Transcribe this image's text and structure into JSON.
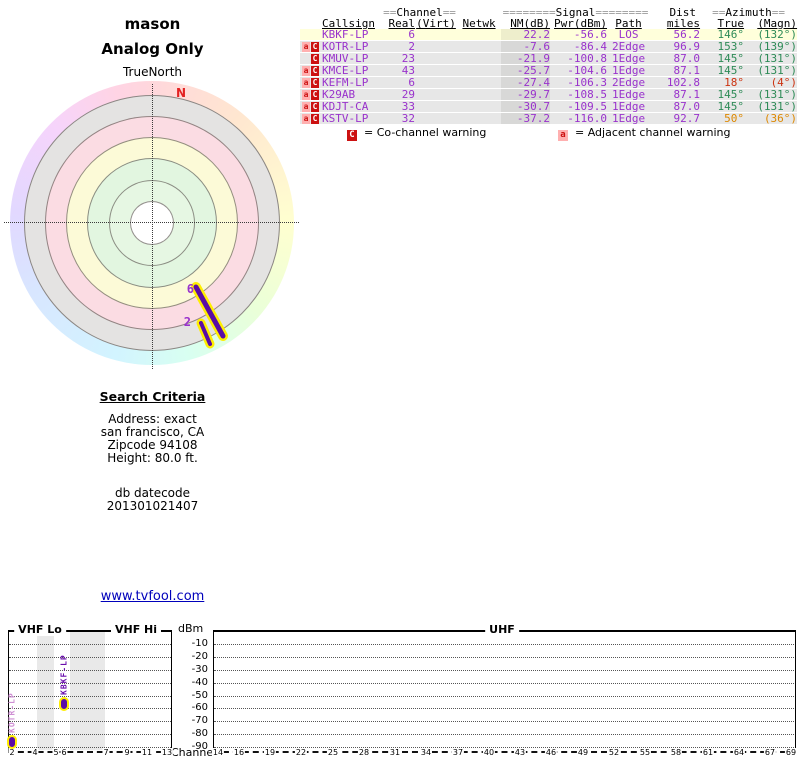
{
  "title": "mason",
  "subtitle": "Analog Only",
  "radar": {
    "orientation_label": "TrueNorth",
    "north_label": "N",
    "spokes": [
      {
        "label": "6",
        "callsign": "KBKF-LP",
        "azimuth_true_deg": 146
      },
      {
        "label": "2",
        "callsign": "KOTR-LP",
        "azimuth_true_deg": 153
      }
    ]
  },
  "table": {
    "group_headers": [
      "==Channel==",
      "========Signal========",
      "Dist",
      "==Azimuth=="
    ],
    "columns": [
      "Callsign",
      "Real",
      "(Virt)",
      "Netwk",
      "NM(dB)",
      "Pwr(dBm)",
      "Path",
      "miles",
      "True",
      "(Magn)"
    ],
    "rows": [
      {
        "warnings": [],
        "callsign": "KBKF-LP",
        "real": "6",
        "virt": "",
        "netwk": "",
        "nm": "22.2",
        "pwr": "-56.6",
        "path": "LOS",
        "miles": "56.2",
        "true": "146°",
        "magn": "(132°)",
        "az": "green",
        "highlight": true
      },
      {
        "warnings": [
          "a",
          "C"
        ],
        "callsign": "KOTR-LP",
        "real": "2",
        "virt": "",
        "netwk": "",
        "nm": "-7.6",
        "pwr": "-86.4",
        "path": "2Edge",
        "miles": "96.9",
        "true": "153°",
        "magn": "(139°)",
        "az": "green",
        "highlight": false
      },
      {
        "warnings": [
          "C"
        ],
        "callsign": "KMUV-LP",
        "real": "23",
        "virt": "",
        "netwk": "",
        "nm": "-21.9",
        "pwr": "-100.8",
        "path": "1Edge",
        "miles": "87.0",
        "true": "145°",
        "magn": "(131°)",
        "az": "green",
        "highlight": false
      },
      {
        "warnings": [
          "a",
          "C"
        ],
        "callsign": "KMCE-LP",
        "real": "43",
        "virt": "",
        "netwk": "",
        "nm": "-25.7",
        "pwr": "-104.6",
        "path": "1Edge",
        "miles": "87.1",
        "true": "145°",
        "magn": "(131°)",
        "az": "green",
        "highlight": false
      },
      {
        "warnings": [
          "a",
          "C"
        ],
        "callsign": "KEFM-LP",
        "real": "6",
        "virt": "",
        "netwk": "",
        "nm": "-27.4",
        "pwr": "-106.3",
        "path": "2Edge",
        "miles": "102.8",
        "true": "18°",
        "magn": "(4°)",
        "az": "red",
        "highlight": false
      },
      {
        "warnings": [
          "a",
          "C"
        ],
        "callsign": "K29AB",
        "real": "29",
        "virt": "",
        "netwk": "",
        "nm": "-29.7",
        "pwr": "-108.5",
        "path": "1Edge",
        "miles": "87.1",
        "true": "145°",
        "magn": "(131°)",
        "az": "green",
        "highlight": false
      },
      {
        "warnings": [
          "a",
          "C"
        ],
        "callsign": "KDJT-CA",
        "real": "33",
        "virt": "",
        "netwk": "",
        "nm": "-30.7",
        "pwr": "-109.5",
        "path": "1Edge",
        "miles": "87.0",
        "true": "145°",
        "magn": "(131°)",
        "az": "green",
        "highlight": false
      },
      {
        "warnings": [
          "a",
          "C"
        ],
        "callsign": "KSTV-LP",
        "real": "32",
        "virt": "",
        "netwk": "",
        "nm": "-37.2",
        "pwr": "-116.0",
        "path": "1Edge",
        "miles": "92.7",
        "true": "50°",
        "magn": "(36°)",
        "az": "orange",
        "highlight": false
      }
    ],
    "legend": [
      {
        "badge": "C",
        "text": "= Co-channel warning"
      },
      {
        "badge": "a",
        "text": "= Adjacent channel warning"
      }
    ]
  },
  "search_criteria": {
    "heading": "Search Criteria",
    "lines": [
      "Address: exact",
      "san francisco, CA",
      "Zipcode 94108",
      "Height: 80.0 ft."
    ],
    "db_label": "db datecode",
    "db_value": "201301021407"
  },
  "link": "www.tvfool.com",
  "chart_data": [
    {
      "type": "radar",
      "title": "mason",
      "subtitle": "Analog Only",
      "orientation": "TrueNorth",
      "rings": [
        "green-inner",
        "green-outer",
        "yellow",
        "pink",
        "gray",
        "hue-rim"
      ],
      "spokes": [
        {
          "callsign": "KBKF-LP",
          "channel": 6,
          "azimuth_true_deg": 146,
          "nm_db": 22.2
        },
        {
          "callsign": "KOTR-LP",
          "channel": 2,
          "azimuth_true_deg": 153,
          "nm_db": -7.6
        }
      ]
    },
    {
      "type": "bar",
      "ylabel": "dBm",
      "xlabel": "Channel",
      "ylim": [
        -95,
        -5
      ],
      "y_ticks": [
        "-10",
        "-20",
        "-30",
        "-40",
        "-50",
        "-60",
        "-70",
        "-80",
        "-90"
      ],
      "band_labels": [
        "VHF Lo",
        "VHF Hi",
        "UHF"
      ],
      "x_ticks_vhf": [
        2,
        4,
        5,
        6,
        7,
        9,
        11,
        13
      ],
      "x_ticks_uhf": [
        14,
        16,
        19,
        22,
        25,
        28,
        31,
        34,
        37,
        40,
        43,
        46,
        49,
        52,
        55,
        58,
        61,
        64,
        67,
        69
      ],
      "bars": [
        {
          "label": "KBKF-LP",
          "channel": 6,
          "pwr_dbm": -56.6,
          "color": "#6a0dad"
        },
        {
          "label": "KOTR-LP",
          "channel": 2,
          "pwr_dbm": -86.4,
          "color": "#cf8fd4"
        }
      ]
    }
  ],
  "colors": {
    "table_text": "#9932cc",
    "azimuth_ok": "#2e8b57",
    "azimuth_warn_red": "#cc3311",
    "azimuth_warn_orange": "#dd8800",
    "co_channel_badge": "#cc1111",
    "adjacent_badge": "#ffb0b0",
    "signal_bar": "#5a0ca5",
    "bar_halo": "#ffee00",
    "highlight_row": "#ffffdb",
    "link": "#0000bb",
    "north": "#e32222"
  }
}
